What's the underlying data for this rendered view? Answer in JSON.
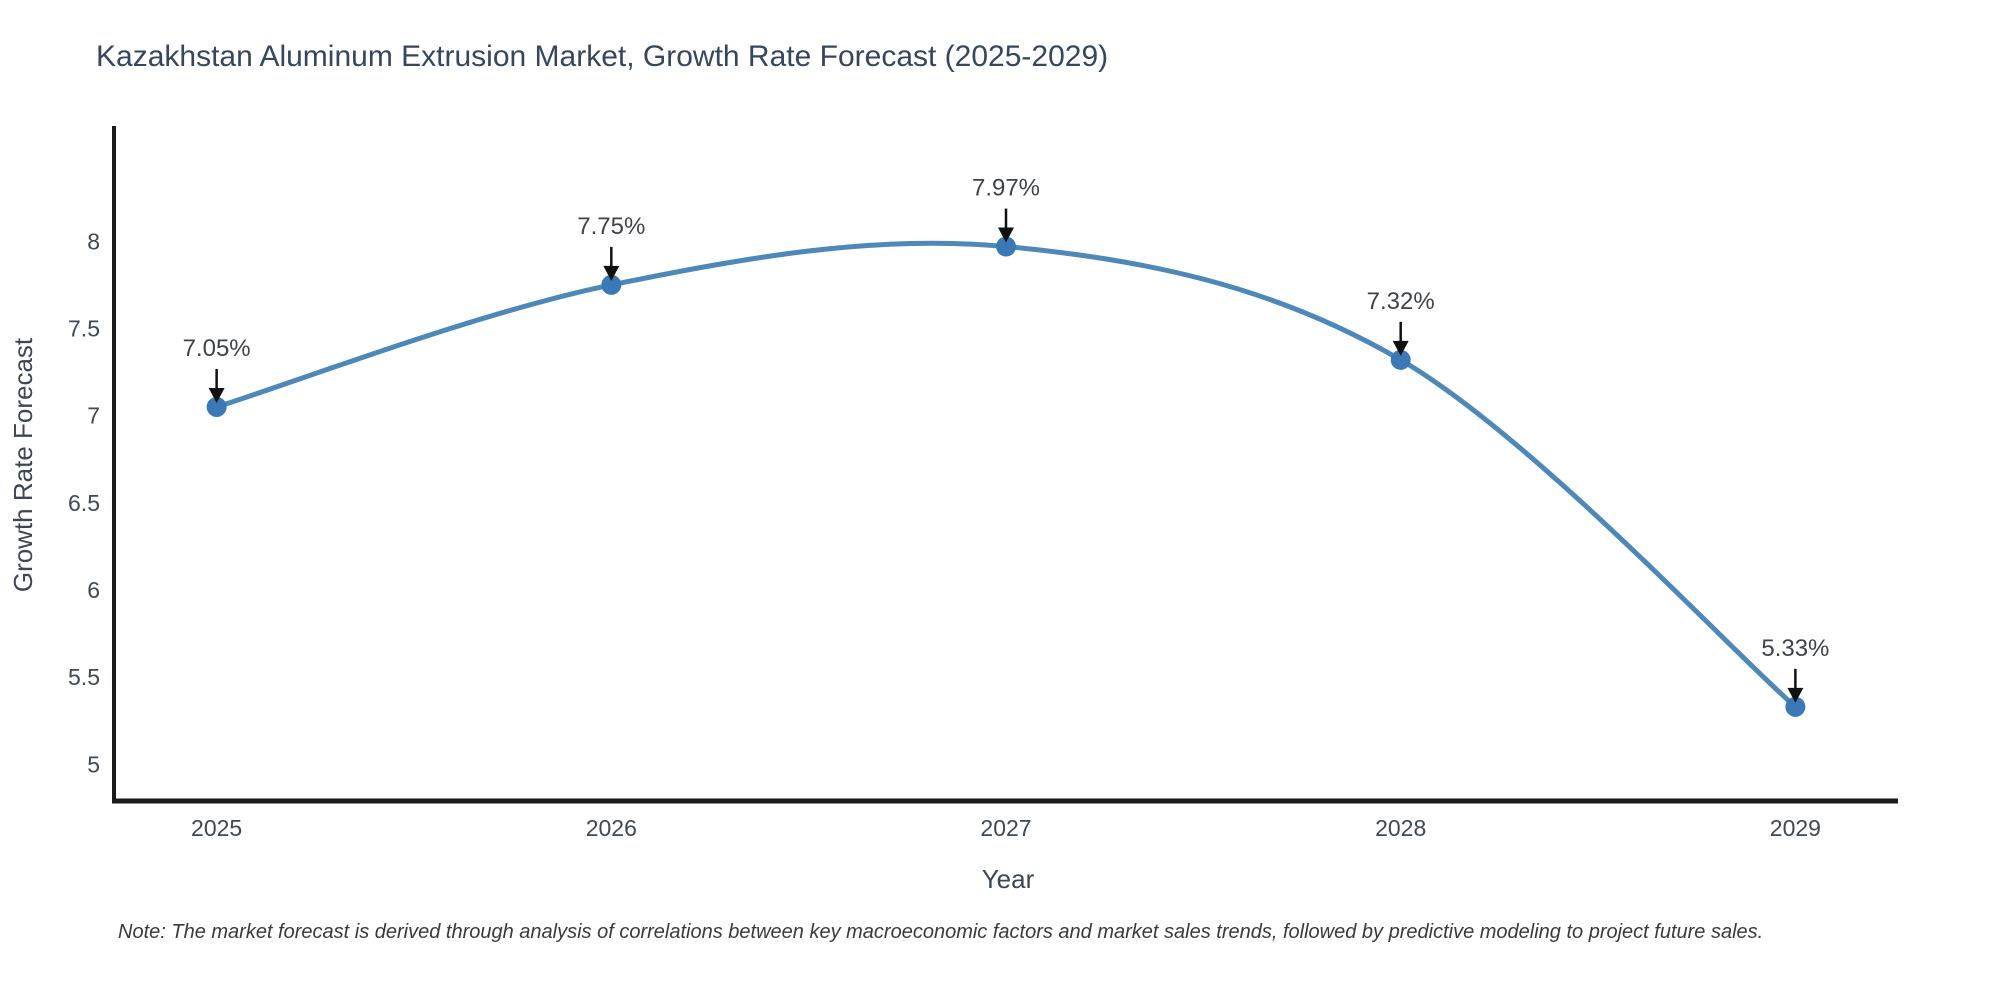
{
  "chart_data": {
    "type": "line",
    "title": "Kazakhstan Aluminum Extrusion Market, Growth Rate Forecast (2025-2029)",
    "xlabel": "Year",
    "ylabel": "Growth Rate Forecast",
    "x": [
      2025,
      2026,
      2027,
      2028,
      2029
    ],
    "series": [
      {
        "name": "Growth Rate Forecast",
        "values": [
          7.05,
          7.75,
          7.97,
          7.32,
          5.33
        ]
      }
    ],
    "point_labels": [
      "7.05%",
      "7.75%",
      "7.97%",
      "7.32%",
      "5.33%"
    ],
    "xticks": {
      "values": [
        2025,
        2026,
        2027,
        2028,
        2029
      ],
      "labels": [
        "2025",
        "2026",
        "2027",
        "2028",
        "2029"
      ]
    },
    "yticks": {
      "values": [
        5,
        5.5,
        6,
        6.5,
        7,
        7.5,
        8
      ],
      "labels": [
        "5",
        "5.5",
        "6",
        "6.5",
        "7",
        "7.5",
        "8"
      ]
    },
    "xlim": [
      2024.74,
      2029.26
    ],
    "ylim": [
      4.79,
      8.65
    ],
    "grid": false,
    "legend": false,
    "line_shape": "spline",
    "colors": {
      "line": "#4e88b8",
      "marker": "#3a79b6",
      "arrow": "#111111",
      "spine": "#1a1a1a"
    },
    "note": "Note: The market forecast is derived through analysis of correlations between key macroeconomic factors and market sales trends, followed by predictive modeling to project future sales."
  }
}
